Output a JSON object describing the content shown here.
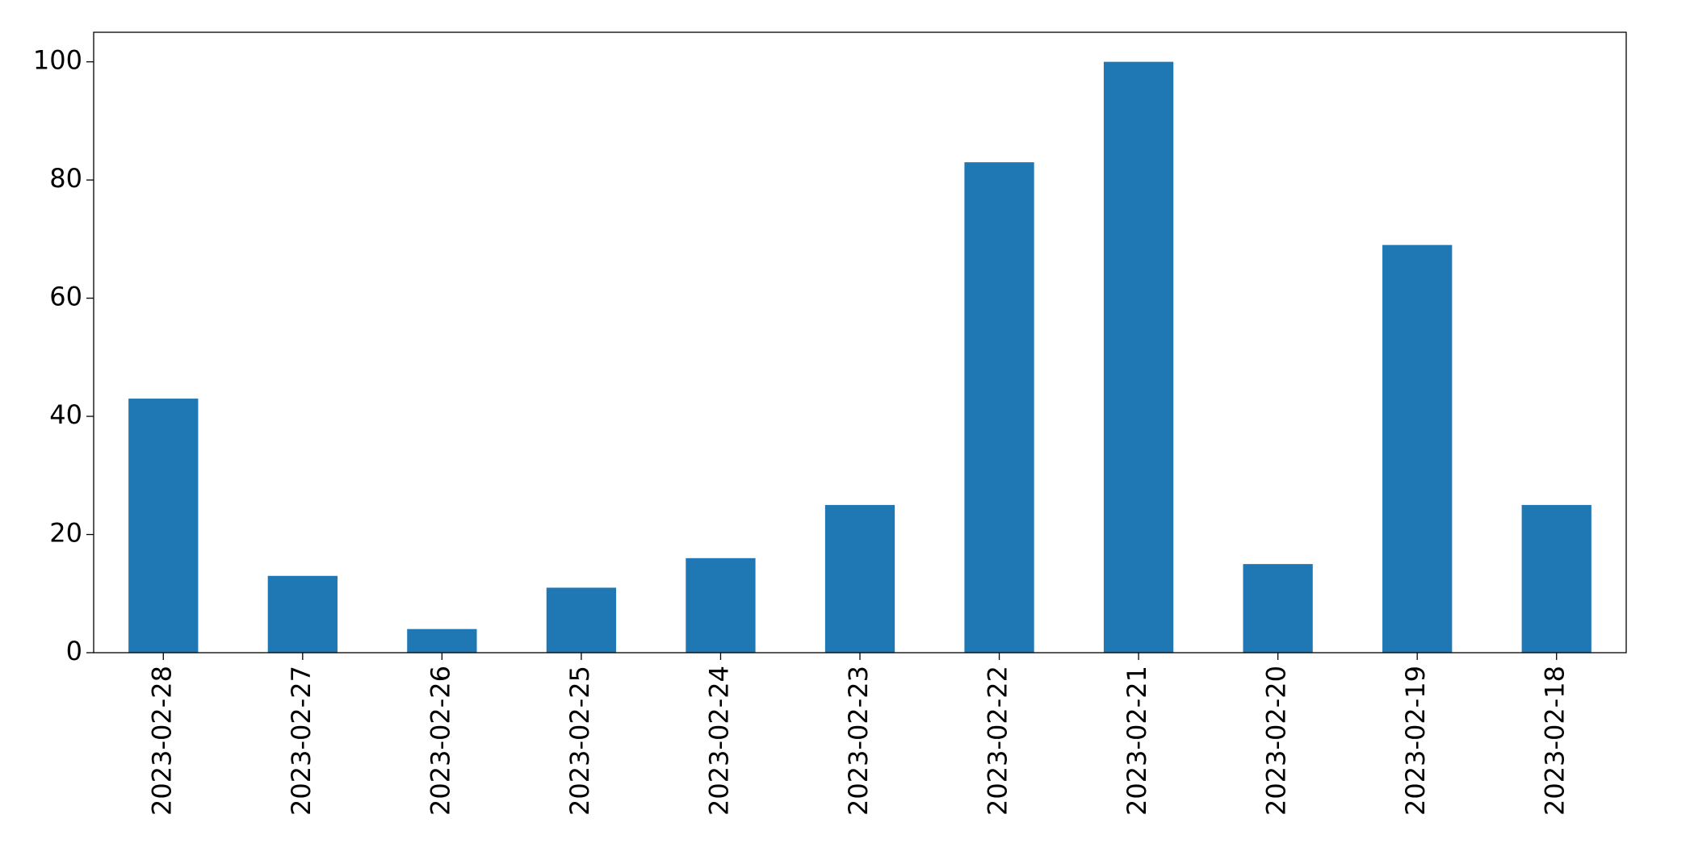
{
  "chart_data": {
    "type": "bar",
    "categories": [
      "2023-02-28",
      "2023-02-27",
      "2023-02-26",
      "2023-02-25",
      "2023-02-24",
      "2023-02-23",
      "2023-02-22",
      "2023-02-21",
      "2023-02-20",
      "2023-02-19",
      "2023-02-18"
    ],
    "values": [
      43,
      13,
      4,
      11,
      16,
      25,
      83,
      100,
      15,
      69,
      25
    ],
    "color": "#1f77b4",
    "ylim": [
      0,
      105
    ],
    "yticks": [
      0,
      20,
      40,
      60,
      80,
      100
    ],
    "grid": false
  }
}
